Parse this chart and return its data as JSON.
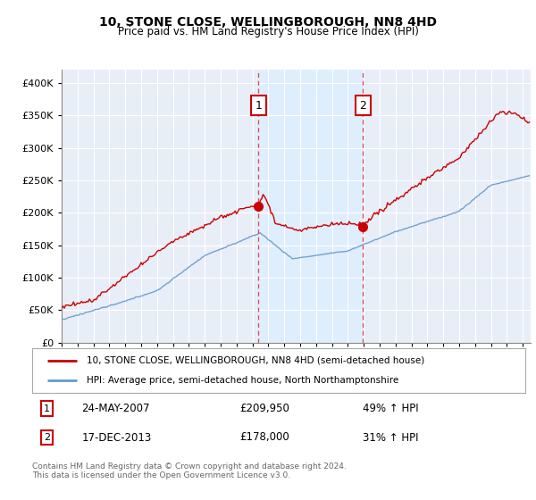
{
  "title": "10, STONE CLOSE, WELLINGBOROUGH, NN8 4HD",
  "subtitle": "Price paid vs. HM Land Registry's House Price Index (HPI)",
  "legend_line1": "10, STONE CLOSE, WELLINGBOROUGH, NN8 4HD (semi-detached house)",
  "legend_line2": "HPI: Average price, semi-detached house, North Northamptonshire",
  "sale1_date": "24-MAY-2007",
  "sale1_price": "£209,950",
  "sale1_hpi": "49% ↑ HPI",
  "sale2_date": "17-DEC-2013",
  "sale2_price": "£178,000",
  "sale2_hpi": "31% ↑ HPI",
  "footer": "Contains HM Land Registry data © Crown copyright and database right 2024.\nThis data is licensed under the Open Government Licence v3.0.",
  "sale1_x": 2007.38,
  "sale1_y": 209950,
  "sale2_x": 2013.96,
  "sale2_y": 178000,
  "hpi_color": "#6699cc",
  "price_color": "#cc0000",
  "vline_color": "#dd3333",
  "label_box_color": "#cc0000",
  "shade_color": "#ddeeff",
  "background_color": "#e8eef8",
  "plot_bg": "#ffffff",
  "ylim": [
    0,
    420000
  ],
  "xlim_start": 1995,
  "xlim_end": 2024.5,
  "yticks": [
    0,
    50000,
    100000,
    150000,
    200000,
    250000,
    300000,
    350000,
    400000
  ]
}
